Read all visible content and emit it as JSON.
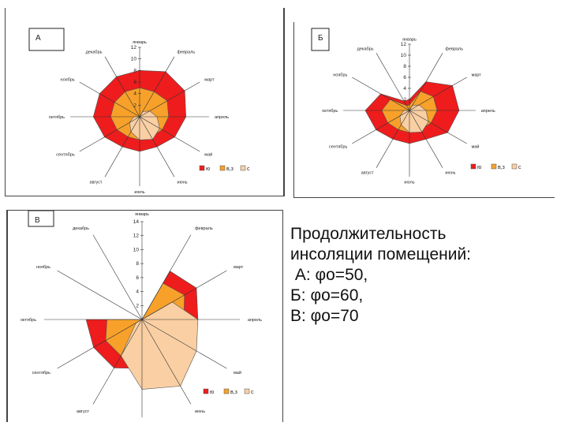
{
  "caption": {
    "line1": "Продолжительность",
    "line2": "инсоляции помещений:",
    "line3": " А: φо=50,",
    "line4": "Б: φо=60,",
    "line5": "В: φо=70"
  },
  "colors": {
    "south": "#ee1c1c",
    "east_west": "#f7a12a",
    "north": "#f9cfa3",
    "axis": "#333333"
  },
  "chart_data": [
    {
      "type": "radar",
      "panel_label": "А",
      "categories": [
        "январь",
        "февраль",
        "март",
        "апрель",
        "май",
        "июнь",
        "июль",
        "август",
        "сентябрь",
        "октябрь",
        "ноябрь",
        "декабрь"
      ],
      "category_labels": [
        "январь",
        "февраль",
        "март",
        "апрель",
        "май",
        "июнь",
        "июль",
        "август",
        "сентябрь",
        "октябрь",
        "ноябрь",
        "декабрь"
      ],
      "ticks": [
        "12",
        "10",
        "8",
        "6",
        "4",
        "2"
      ],
      "rmax": 12,
      "legend": [
        "ю",
        "в,з",
        "с"
      ],
      "series": [
        {
          "name": "ю",
          "values": [
            8,
            9,
            9,
            8,
            7,
            6,
            6,
            6,
            7,
            8,
            8,
            8
          ]
        },
        {
          "name": "в,з",
          "values": [
            5,
            5,
            5.5,
            5,
            4.5,
            4,
            4,
            4,
            4.5,
            5,
            5,
            5
          ]
        },
        {
          "name": "с",
          "values": [
            0,
            1,
            2,
            3,
            4,
            4.5,
            4,
            3,
            2,
            1,
            0,
            0
          ]
        }
      ]
    },
    {
      "type": "radar",
      "panel_label": "Б",
      "categories": [
        "январь",
        "февраль",
        "март",
        "апрель",
        "май",
        "июнь",
        "июль",
        "август",
        "сентябрь",
        "октябрь",
        "ноябрь",
        "декабрь"
      ],
      "category_labels": [
        "январь",
        "февраль",
        "март",
        "апрель",
        "май",
        "июнь",
        "июль",
        "август",
        "сентябрь",
        "октябрь",
        "ноябрь",
        "декабрь"
      ],
      "ticks": [
        "12",
        "10",
        "8",
        "6",
        "4",
        "2"
      ],
      "rmax": 12,
      "legend": [
        "ю",
        "в,з",
        "с"
      ],
      "series": [
        {
          "name": "ю",
          "values": [
            2,
            6,
            9,
            9,
            8,
            6,
            6,
            6,
            7,
            8,
            6,
            2
          ]
        },
        {
          "name": "в,з",
          "values": [
            1,
            4,
            5,
            5,
            4.5,
            4,
            4,
            4,
            4.5,
            5,
            4,
            1
          ]
        },
        {
          "name": "с",
          "values": [
            0,
            1,
            2,
            3,
            4,
            4.5,
            4,
            3,
            2,
            1,
            0,
            0
          ]
        }
      ]
    },
    {
      "type": "radar",
      "panel_label": "В",
      "categories": [
        "январь",
        "февраль",
        "март",
        "апрель",
        "май",
        "июнь",
        "июль",
        "август",
        "сентябрь",
        "октябрь",
        "ноябрь",
        "декабрь"
      ],
      "category_labels": [
        "январь",
        "февраль",
        "март",
        "апрель",
        "май",
        "июнь",
        "июль",
        "август",
        "сентябрь",
        "октябрь",
        "ноябрь",
        "декабрь"
      ],
      "ticks": [
        "14",
        "12",
        "10",
        "8",
        "6",
        "4",
        "2"
      ],
      "rmax": 14,
      "legend": [
        "ю",
        "в,з",
        "с"
      ],
      "series": [
        {
          "name": "ю",
          "values": [
            0,
            8,
            9,
            8,
            7,
            7,
            7,
            8,
            8,
            8,
            0,
            0
          ]
        },
        {
          "name": "в,з",
          "values": [
            0,
            6,
            7,
            6,
            6,
            6,
            5,
            6,
            6,
            5,
            0,
            0
          ]
        },
        {
          "name": "с",
          "values": [
            0,
            0,
            5,
            8,
            9,
            11,
            10,
            6,
            1,
            0,
            0,
            0
          ]
        }
      ]
    }
  ]
}
